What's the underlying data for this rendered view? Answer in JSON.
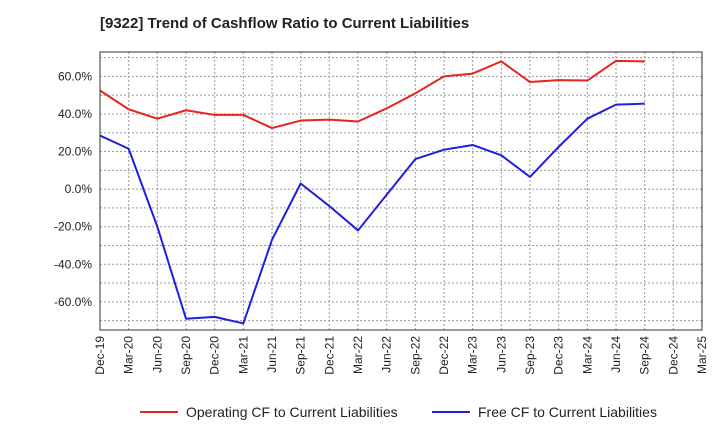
{
  "title": "[9322]  Trend of Cashflow Ratio to Current Liabilities",
  "chart_data": {
    "type": "line",
    "title": "[9322]  Trend of Cashflow Ratio to Current Liabilities",
    "xlabel": "",
    "ylabel": "",
    "categories": [
      "Dec-19",
      "Mar-20",
      "Jun-20",
      "Sep-20",
      "Dec-20",
      "Mar-21",
      "Jun-21",
      "Sep-21",
      "Dec-21",
      "Mar-22",
      "Jun-22",
      "Sep-22",
      "Dec-22",
      "Mar-23",
      "Jun-23",
      "Sep-23",
      "Dec-23",
      "Mar-24",
      "Jun-24",
      "Sep-24",
      "Dec-24",
      "Mar-25"
    ],
    "yticks": [
      "60.0%",
      "40.0%",
      "20.0%",
      "0.0%",
      "-20.0%",
      "-40.0%",
      "-60.0%"
    ],
    "ytick_values": [
      60,
      40,
      20,
      0,
      -20,
      -40,
      -60
    ],
    "ylim": [
      -75,
      73
    ],
    "grid": true,
    "legend_position": "bottom",
    "series": [
      {
        "name": "Operating CF to Current Liabilities",
        "color": "#e8221f",
        "values": [
          52.5,
          42.5,
          37.5,
          42.0,
          39.5,
          39.5,
          32.5,
          36.5,
          37.0,
          36.0,
          43.0,
          51.0,
          60.0,
          61.5,
          68.0,
          57.0,
          58.0,
          57.8,
          68.3,
          68.0,
          null,
          null
        ]
      },
      {
        "name": "Free CF to Current Liabilities",
        "color": "#1f1fdd",
        "values": [
          28.5,
          21.5,
          -20.0,
          -69.0,
          -68.0,
          -71.5,
          -27.0,
          3.0,
          -9.0,
          -22.0,
          -3.0,
          16.0,
          21.0,
          23.5,
          18.0,
          6.5,
          22.5,
          37.5,
          45.0,
          45.5,
          null,
          null
        ]
      }
    ]
  }
}
